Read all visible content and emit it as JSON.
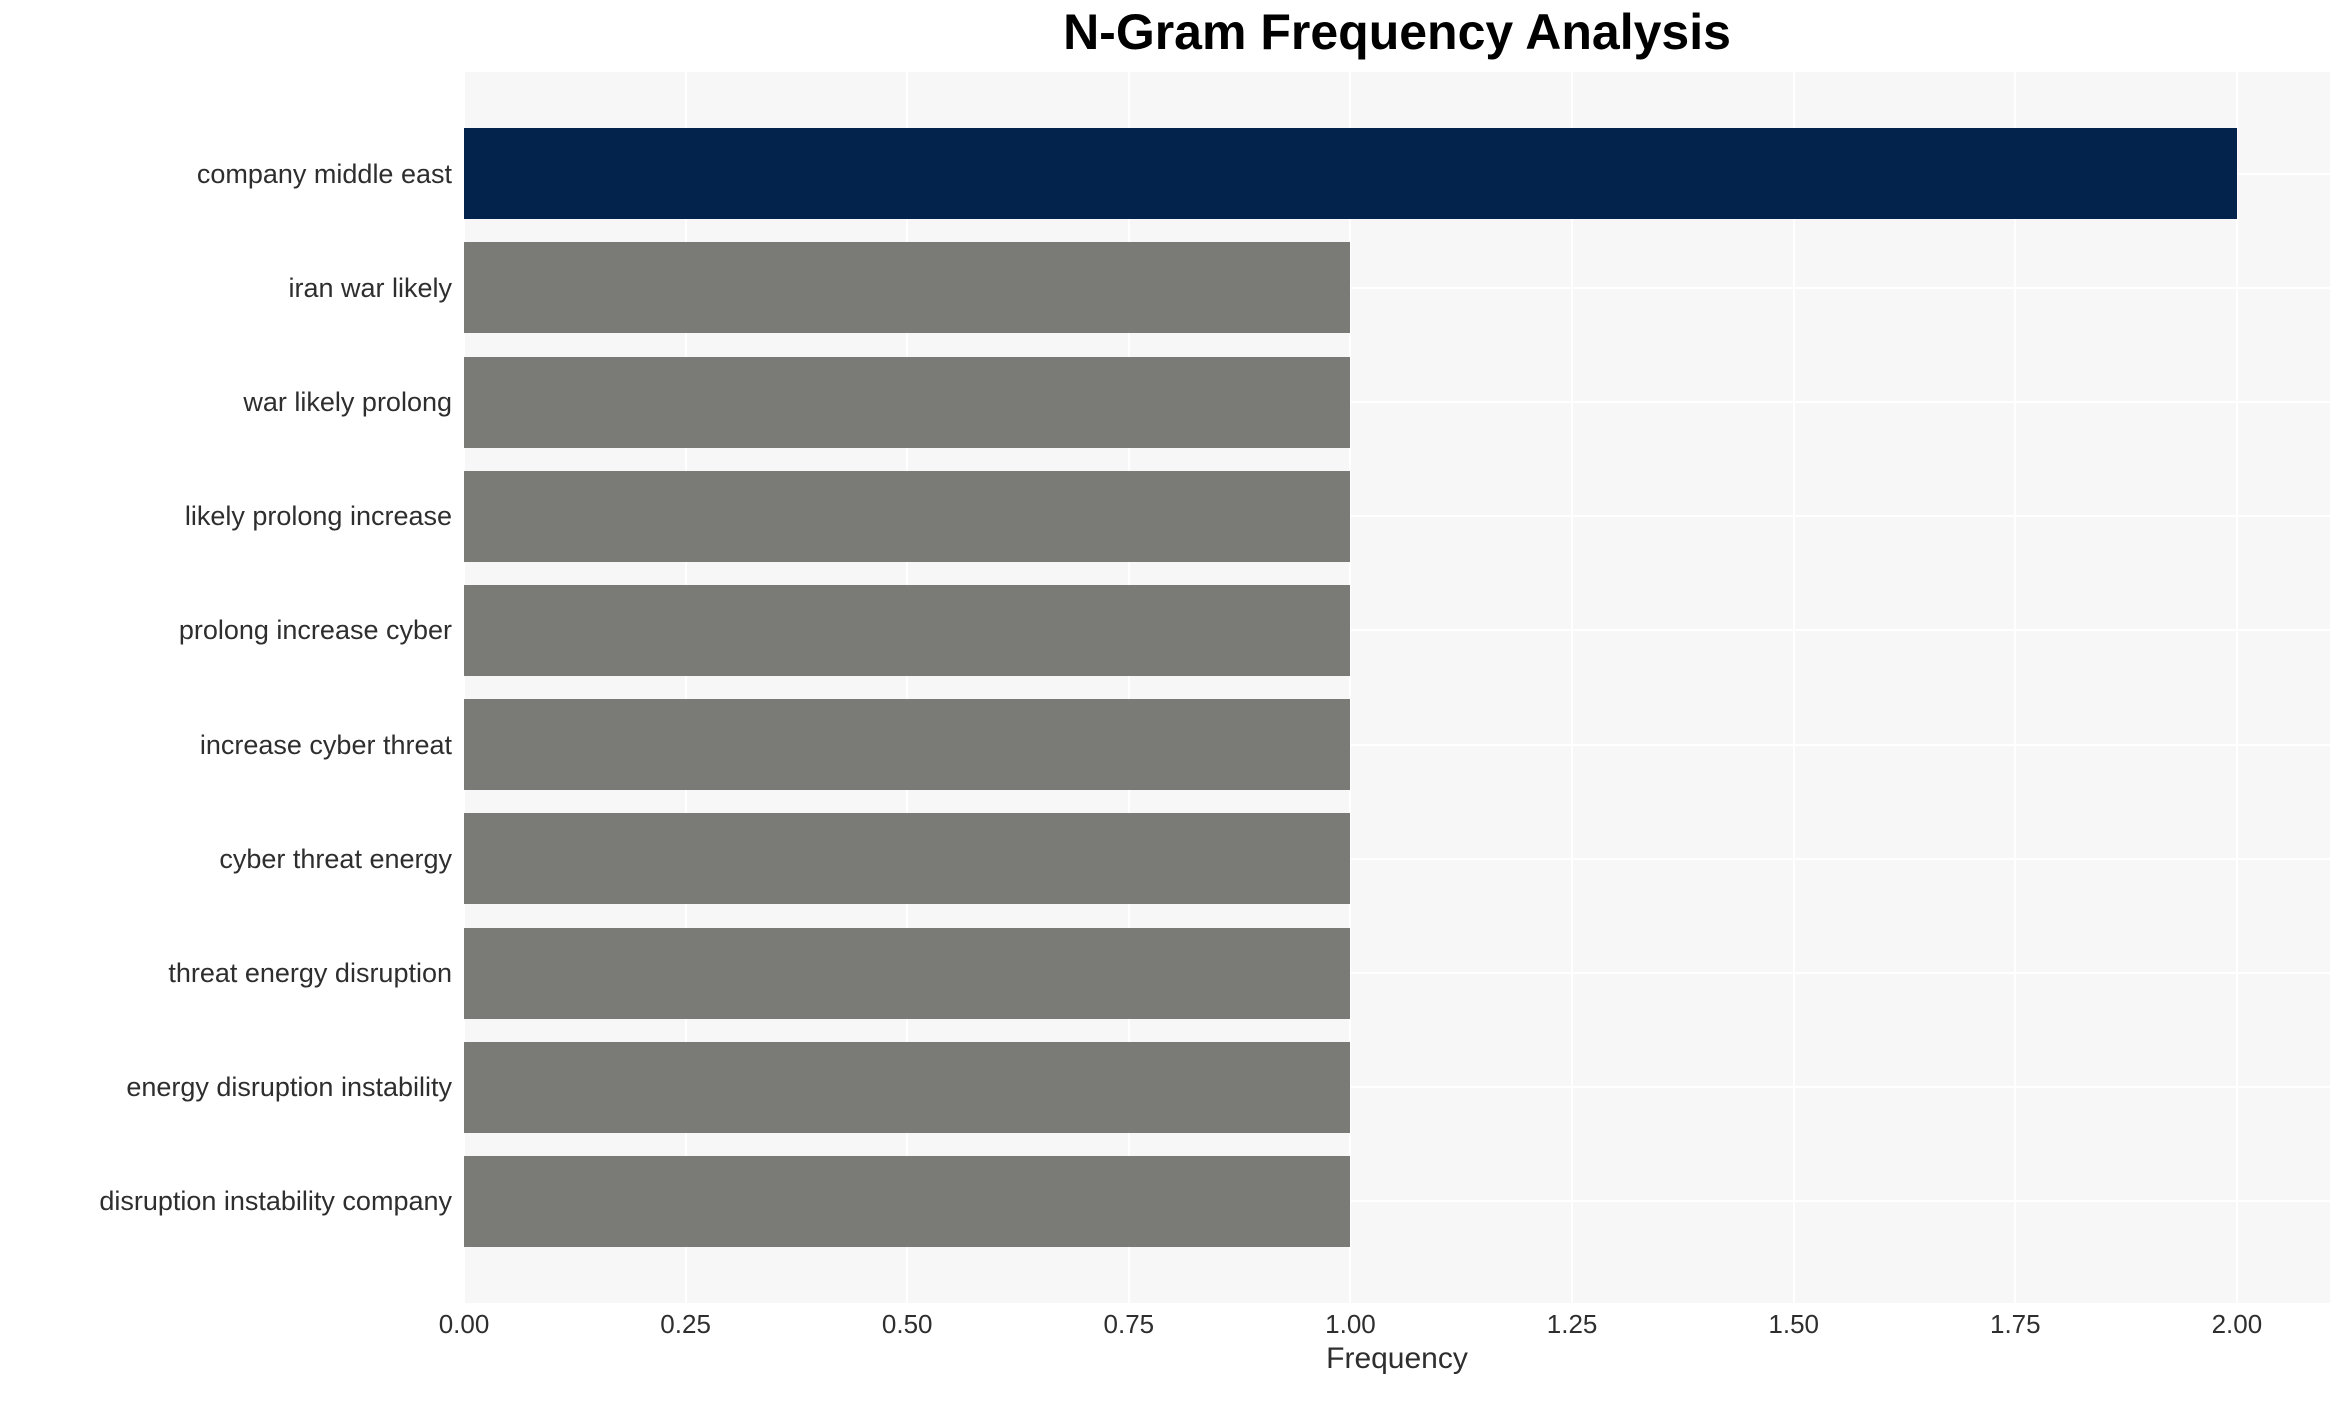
{
  "chart_data": {
    "type": "bar",
    "orientation": "horizontal",
    "title": "N-Gram Frequency Analysis",
    "xlabel": "Frequency",
    "ylabel": "",
    "categories": [
      "company middle east",
      "iran war likely",
      "war likely prolong",
      "likely prolong increase",
      "prolong increase cyber",
      "increase cyber threat",
      "cyber threat energy",
      "threat energy disruption",
      "energy disruption instability",
      "disruption instability company"
    ],
    "values": [
      2,
      1,
      1,
      1,
      1,
      1,
      1,
      1,
      1,
      1
    ],
    "x_tick_labels": [
      "0.00",
      "0.25",
      "0.50",
      "0.75",
      "1.00",
      "1.25",
      "1.50",
      "1.75",
      "2.00"
    ],
    "x_tick_values": [
      0,
      0.25,
      0.5,
      0.75,
      1.0,
      1.25,
      1.5,
      1.75,
      2.0
    ],
    "xlim": [
      0,
      2.105
    ],
    "grid": true,
    "legend_position": "none",
    "highlight_index": 0,
    "colors": {
      "highlight_bar": "#03234c",
      "default_bar": "#7a7a76",
      "plot_background": "#f7f7f7",
      "grid_line": "#ffffff",
      "tick_text": "#2e2e2e",
      "title_text": "#000000"
    }
  }
}
